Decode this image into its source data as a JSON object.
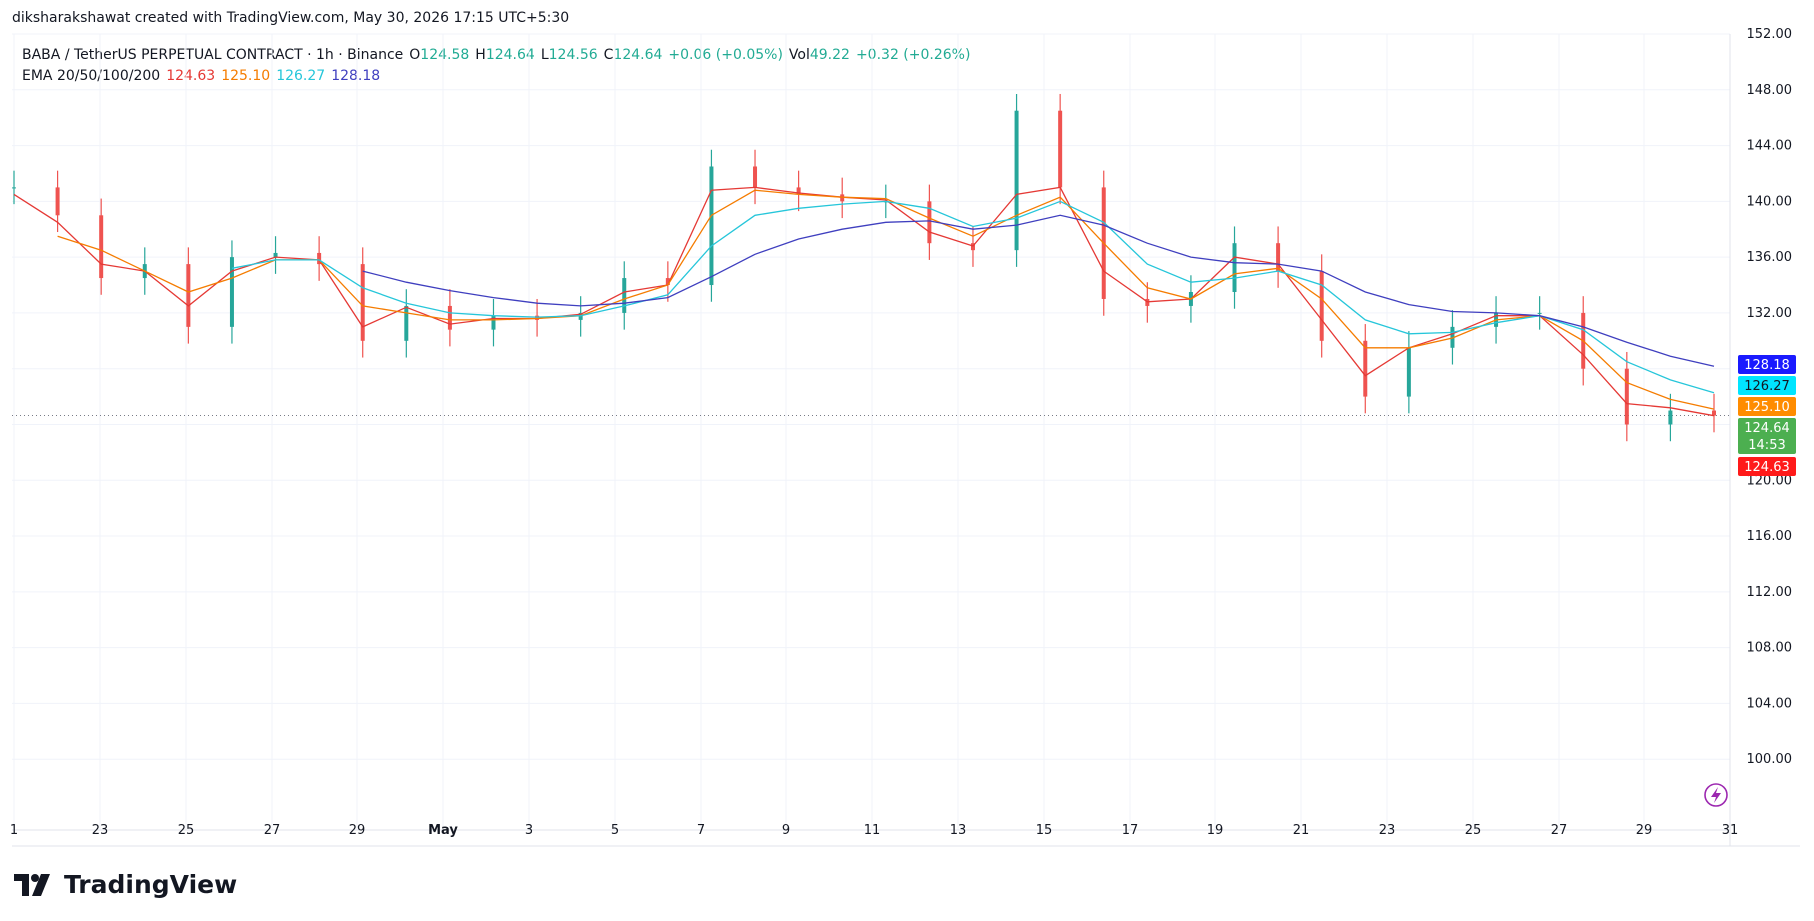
{
  "header": {
    "credit": "diksharakshawat created with TradingView.com, May 30, 2026 17:15 UTC+5:30"
  },
  "legend": {
    "symbol": "BABA / TetherUS PERPETUAL CONTRACT · 1h · Binance",
    "open_label": "O",
    "open_value": "124.58",
    "high_label": "H",
    "high_value": "124.64",
    "low_label": "L",
    "low_value": "124.56",
    "close_label": "C",
    "close_value": "124.64",
    "change": "+0.06 (+0.05%)",
    "vol_label": "Vol",
    "vol_value": "49.22",
    "vol_change": "+0.32 (+0.26%)",
    "ema_label": "EMA 20/50/100/200",
    "ema20": "124.63",
    "ema50": "125.10",
    "ema100": "126.27",
    "ema200": "128.18"
  },
  "colors": {
    "ema20": "#e53935",
    "ema50": "#f57c00",
    "ema100": "#26c6da",
    "ema200": "#3f3fbf",
    "up": "#26a69a",
    "down": "#ef5350",
    "close_badge": "#4caf50",
    "ema200_badge": "#1a1aff",
    "ema100_badge": "#00e5ff",
    "ema50_badge": "#ff8c00",
    "ema20_badge": "#ff1a1a"
  },
  "price_badges": {
    "ema200": "128.18",
    "ema100": "126.27",
    "ema50": "125.10",
    "close": "124.64",
    "countdown": "14:53",
    "ema20": "124.63"
  },
  "footer": {
    "brand": "TradingView",
    "logo_icon": "tradingview-logo-icon",
    "flash_icon": "lightning-icon"
  },
  "chart_data": {
    "type": "line",
    "title": "BABA / TetherUS PERPETUAL CONTRACT · 1h · Binance",
    "ylim": [
      96.5,
      152
    ],
    "y_ticks": [
      "100.00",
      "104.00",
      "108.00",
      "112.00",
      "116.00",
      "120.00",
      "124.00",
      "128.00",
      "132.00",
      "136.00",
      "140.00",
      "144.00",
      "148.00",
      "152.00"
    ],
    "x_ticks": [
      "1",
      "23",
      "25",
      "27",
      "29",
      "May",
      "3",
      "5",
      "7",
      "9",
      "11",
      "13",
      "15",
      "17",
      "19",
      "21",
      "23",
      "25",
      "27",
      "29",
      "31"
    ],
    "x": [
      "Apr 21",
      "Apr 22",
      "Apr 23",
      "Apr 24",
      "Apr 25",
      "Apr 26",
      "Apr 27",
      "Apr 28",
      "Apr 29",
      "Apr 30",
      "May 1",
      "May 2",
      "May 3",
      "May 4",
      "May 5",
      "May 6",
      "May 7",
      "May 8",
      "May 9",
      "May 10",
      "May 11",
      "May 12",
      "May 13",
      "May 14",
      "May 15",
      "May 16",
      "May 17",
      "May 18",
      "May 19",
      "May 20",
      "May 21",
      "May 22",
      "May 23",
      "May 24",
      "May 25",
      "May 26",
      "May 27",
      "May 28",
      "May 29",
      "May 30"
    ],
    "series": [
      {
        "name": "Price",
        "values": [
          141,
          139,
          134.5,
          135.5,
          131,
          136,
          136.3,
          135.5,
          130,
          132.5,
          130.8,
          131.8,
          131.5,
          132,
          134.5,
          134,
          142.5,
          141,
          140.5,
          140,
          140,
          137,
          136.5,
          146.5,
          141,
          133,
          132.5,
          133.5,
          137,
          135,
          130,
          126,
          129.5,
          131,
          132,
          132,
          128,
          124,
          125,
          124.64
        ]
      },
      {
        "name": "EMA 20",
        "values": [
          140.5,
          138.5,
          135.5,
          135,
          132.5,
          135,
          136,
          135.8,
          131,
          132.4,
          131.2,
          131.6,
          131.6,
          131.9,
          133.5,
          134,
          140.8,
          141,
          140.6,
          140.3,
          140.1,
          137.8,
          136.8,
          140.5,
          141,
          135,
          132.8,
          133,
          136,
          135.5,
          131.5,
          127.5,
          129.5,
          130.5,
          131.8,
          131.8,
          129,
          125.5,
          125.2,
          124.63
        ]
      },
      {
        "name": "EMA 50",
        "values": [
          null,
          137.5,
          136.5,
          135,
          133.5,
          134.5,
          135.8,
          135.8,
          132.5,
          132,
          131.5,
          131.5,
          131.6,
          131.8,
          133,
          134,
          139,
          140.8,
          140.5,
          140.3,
          140.2,
          138.8,
          137.5,
          139,
          140.3,
          137,
          133.8,
          133,
          134.8,
          135.2,
          133,
          129.5,
          129.5,
          130.2,
          131.5,
          131.8,
          130,
          127,
          125.8,
          125.1
        ]
      },
      {
        "name": "EMA 100",
        "values": [
          null,
          null,
          null,
          null,
          null,
          135.2,
          135.8,
          135.8,
          133.8,
          132.7,
          132,
          131.8,
          131.7,
          131.8,
          132.5,
          133.3,
          136.8,
          139,
          139.5,
          139.8,
          140,
          139.5,
          138.2,
          138.8,
          140,
          138.5,
          135.5,
          134.2,
          134.5,
          135,
          134,
          131.5,
          130.5,
          130.6,
          131.3,
          131.8,
          130.8,
          128.5,
          127.2,
          126.27
        ]
      },
      {
        "name": "EMA 200",
        "values": [
          null,
          null,
          null,
          null,
          null,
          null,
          null,
          null,
          135,
          134.2,
          133.6,
          133.1,
          132.7,
          132.5,
          132.7,
          133.1,
          134.6,
          136.2,
          137.3,
          138,
          138.5,
          138.6,
          138,
          138.3,
          139,
          138.3,
          137,
          136,
          135.6,
          135.5,
          135,
          133.5,
          132.6,
          132.1,
          132,
          131.8,
          131,
          129.9,
          128.9,
          128.18
        ]
      }
    ]
  }
}
